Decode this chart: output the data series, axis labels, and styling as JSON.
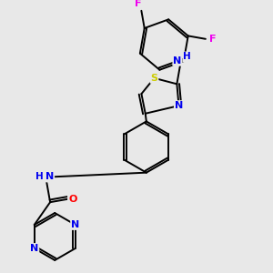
{
  "background_color": "#e8e8e8",
  "bond_color": "#000000",
  "atom_colors": {
    "F": "#ee00ee",
    "N": "#0000ee",
    "S": "#cccc00",
    "O": "#ff0000",
    "H": "#0000ee",
    "C": "#000000"
  },
  "figsize": [
    3.0,
    3.0
  ],
  "dpi": 100
}
